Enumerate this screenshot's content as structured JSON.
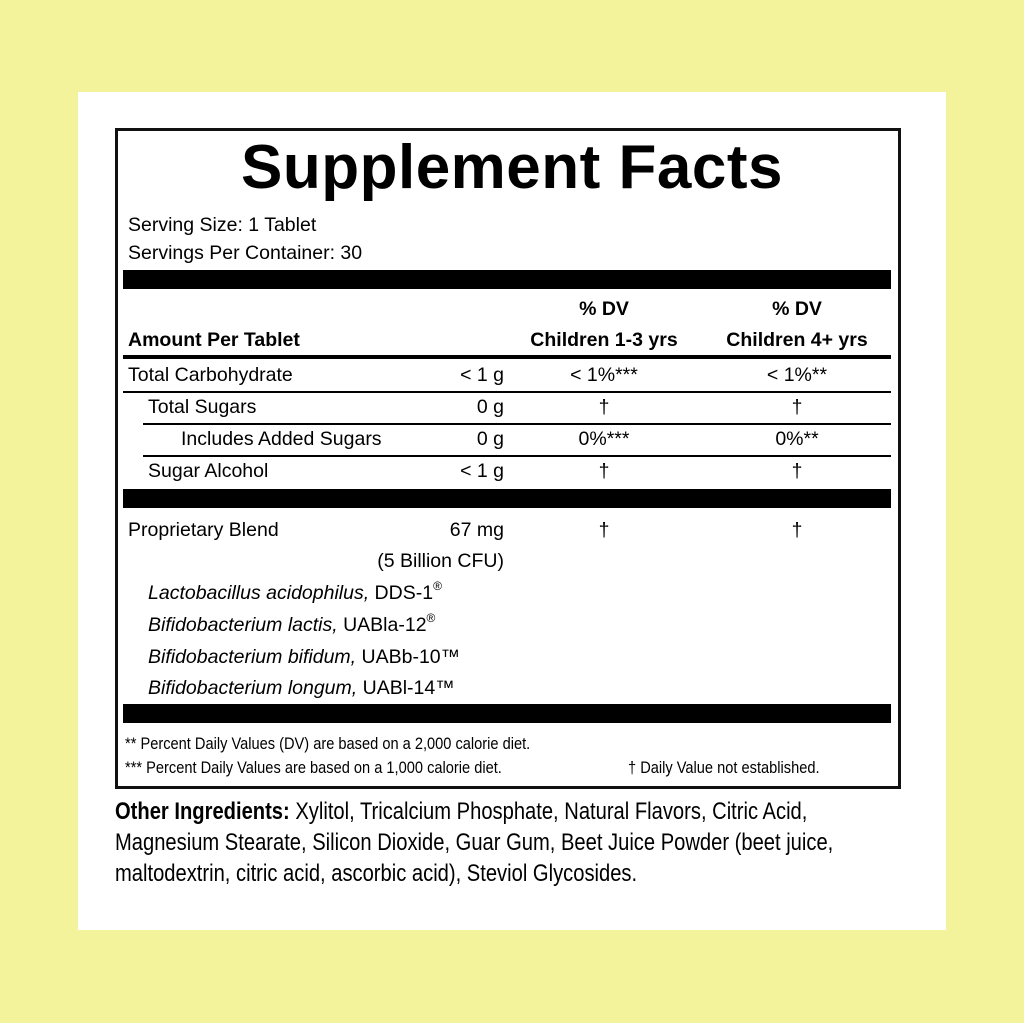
{
  "colors": {
    "background": "#f3f39c",
    "card": "#ffffff",
    "ink": "#000000"
  },
  "title": "Supplement Facts",
  "serving_size": "Serving Size: 1 Tablet",
  "servings_per_container": "Servings Per Container: 30",
  "header": {
    "amount": "Amount Per Tablet",
    "col1_top": "% DV",
    "col1_bottom": "Children 1-3 yrs",
    "col2_top": "% DV",
    "col2_bottom": "Children 4+ yrs"
  },
  "rows": [
    {
      "name": "Total Carbohydrate",
      "amount": "< 1 g",
      "dv1": "< 1%***",
      "dv2": "< 1%**"
    },
    {
      "name": "Total Sugars",
      "amount": "0 g",
      "dv1": "†",
      "dv2": "†"
    },
    {
      "name": "Includes Added Sugars",
      "amount": "0 g",
      "dv1": "0%***",
      "dv2": "0%**"
    },
    {
      "name": "Sugar Alcohol",
      "amount": "< 1 g",
      "dv1": "†",
      "dv2": "†"
    }
  ],
  "blend": {
    "name": "Proprietary Blend",
    "amount": "67 mg",
    "cfu": "(5 Billion CFU)",
    "dv1": "†",
    "dv2": "†",
    "strains": [
      {
        "species": "Lactobacillus acidophilus,",
        "strain": " DDS-1",
        "mark": "®"
      },
      {
        "species": "Bifidobacterium lactis,",
        "strain": " UABla-12",
        "mark": "®"
      },
      {
        "species": "Bifidobacterium bifidum,",
        "strain": " UABb-10™",
        "mark": ""
      },
      {
        "species": "Bifidobacterium longum,",
        "strain": " UABl-14™",
        "mark": ""
      }
    ]
  },
  "footnotes": {
    "line1": "** Percent Daily Values (DV) are based on a 2,000 calorie diet.",
    "line2": "*** Percent Daily Values are based on a 1,000 calorie diet.",
    "line2b": "† Daily Value not established."
  },
  "other_ingredients": {
    "label": "Other Ingredients:",
    "text": " Xylitol, Tricalcium Phosphate, Natural Flavors, Citric Acid, Magnesium Stearate, Silicon Dioxide, Guar Gum, Beet Juice Powder (beet juice, maltodextrin, citric acid, ascorbic acid), Steviol Glycosides."
  }
}
